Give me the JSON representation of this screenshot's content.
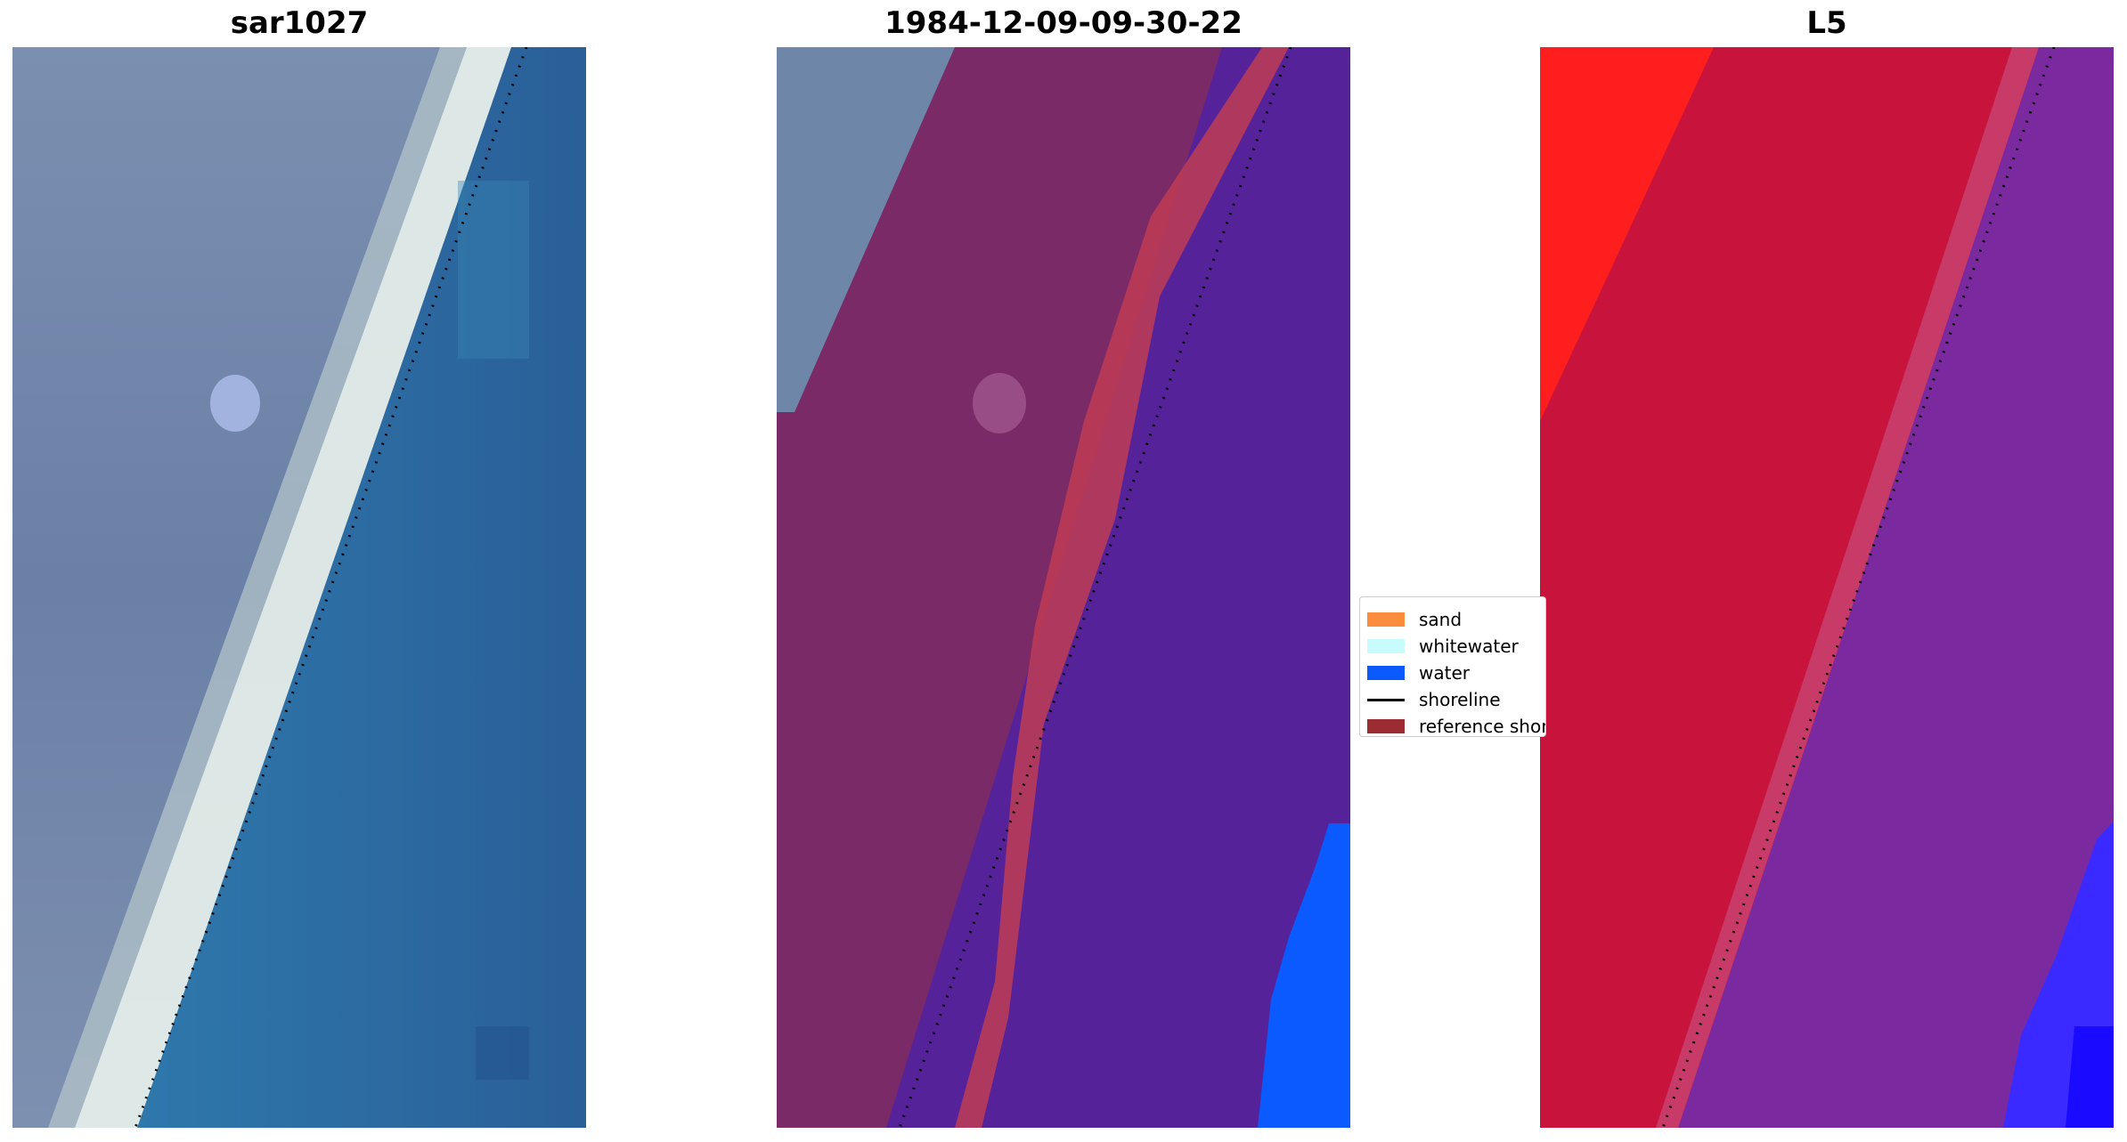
{
  "panels": [
    {
      "title": "sar1027"
    },
    {
      "title": "1984-12-09-09-30-22"
    },
    {
      "title": "L5"
    }
  ],
  "legend": {
    "items": [
      {
        "label": "sand",
        "color": "#ff8c3c"
      },
      {
        "label": "whitewater",
        "color": "#c8fcfc"
      },
      {
        "label": "water",
        "color": "#0a5aff"
      },
      {
        "label": "shoreline",
        "color": "#000000"
      },
      {
        "label": "reference shoreline",
        "color": "#9b2d32"
      }
    ]
  },
  "colors": {
    "land_rgb": "#6e86a8",
    "ocean_rgb": "#2f6da6",
    "surf_white": "#e8f2ee",
    "land_class": "#7a2a66",
    "sand_class": "#c03c55",
    "water_class": "#55229a",
    "deep_water": "#0a5aff",
    "l5_land": "#c8143c",
    "l5_bright": "#ff1e1e",
    "l5_water": "#7a2a9e",
    "l5_deep": "#2a1aff"
  }
}
